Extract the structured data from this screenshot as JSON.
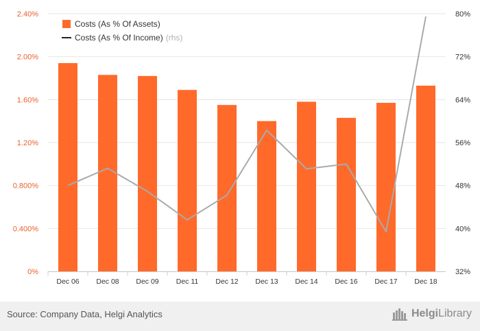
{
  "chart_data": {
    "type": "bar",
    "categories": [
      "Dec 06",
      "Dec 08",
      "Dec 09",
      "Dec 11",
      "Dec 12",
      "Dec 13",
      "Dec 14",
      "Dec 16",
      "Dec 17",
      "Dec 18"
    ],
    "series": [
      {
        "name": "Costs (As % Of Assets)",
        "type": "bar",
        "axis": "left",
        "color": "#ff6a2b",
        "values": [
          1.94,
          1.83,
          1.82,
          1.69,
          1.55,
          1.4,
          1.58,
          1.43,
          1.57,
          1.73
        ]
      },
      {
        "name": "Costs (As % Of Income)",
        "type": "line",
        "axis": "right",
        "color": "#aaaaaa",
        "values": [
          48.0,
          51.2,
          46.9,
          41.6,
          46.2,
          58.3,
          51.1,
          52.0,
          39.4,
          79.5
        ]
      }
    ],
    "y_left": {
      "ylim": [
        0,
        2.4
      ],
      "ticks": [
        0,
        0.4,
        0.8,
        1.2,
        1.6,
        2.0,
        2.4
      ],
      "tick_labels": [
        "0%",
        "0.400%",
        "0.800%",
        "1.20%",
        "1.60%",
        "2.00%",
        "2.40%"
      ],
      "color": "#e8612c"
    },
    "y_right": {
      "ylim": [
        32,
        80
      ],
      "ticks": [
        32,
        40,
        48,
        56,
        64,
        72,
        80
      ],
      "tick_labels": [
        "32%",
        "40%",
        "48%",
        "56%",
        "64%",
        "72%",
        "80%"
      ]
    },
    "legend": {
      "placement": "top-left",
      "items": [
        {
          "label": "Costs (As % Of Assets)",
          "suffix": ""
        },
        {
          "label": "Costs (As % Of Income)",
          "suffix": "(rhs)"
        }
      ]
    },
    "grid": true
  },
  "footer": {
    "source": "Source: Company Data, Helgi Analytics",
    "brand_bold": "Helgi",
    "brand_light": "Library"
  }
}
